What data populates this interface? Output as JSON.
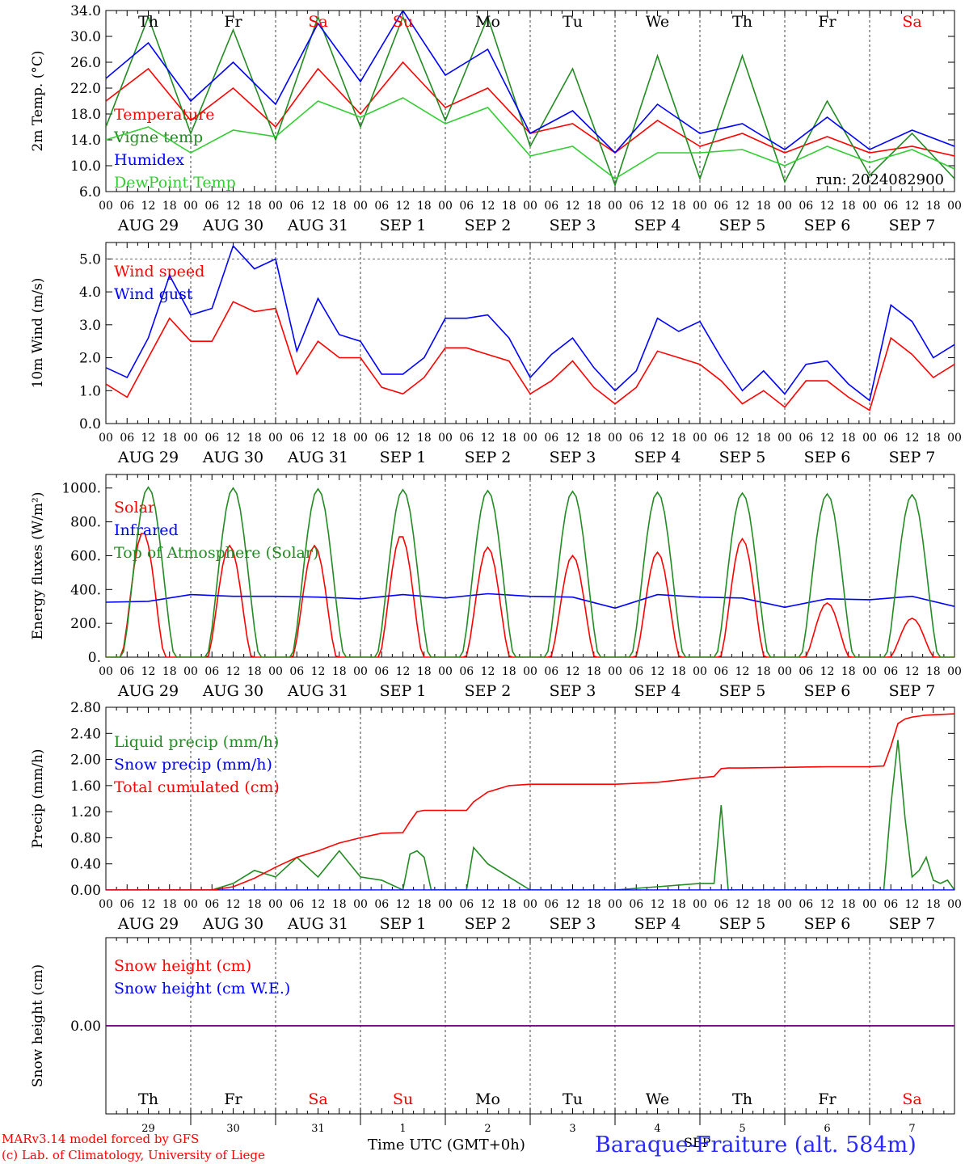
{
  "meteogram": {
    "station": "Baraque-Fraiture (alt. 584m)",
    "run": "run: 2024082900",
    "credit1": "MARv3.14 model forced by GFS",
    "credit2": "(c) Lab. of Climatology, University of Liege",
    "time_axis_title": "Time UTC (GMT+0h)",
    "month_label": "SEP",
    "hour_ticks": [
      "00",
      "06",
      "12",
      "18"
    ],
    "days": [
      {
        "wd": "Th",
        "date": "AUG 29",
        "num": "29",
        "weekend": false
      },
      {
        "wd": "Fr",
        "date": "AUG 30",
        "num": "30",
        "weekend": false
      },
      {
        "wd": "Sa",
        "date": "AUG 31",
        "num": "31",
        "weekend": true
      },
      {
        "wd": "Su",
        "date": "SEP  1",
        "num": "1",
        "weekend": true
      },
      {
        "wd": "Mo",
        "date": "SEP  2",
        "num": "2",
        "weekend": false
      },
      {
        "wd": "Tu",
        "date": "SEP  3",
        "num": "3",
        "weekend": false
      },
      {
        "wd": "We",
        "date": "SEP  4",
        "num": "4",
        "weekend": false
      },
      {
        "wd": "Th",
        "date": "SEP  5",
        "num": "5",
        "weekend": false
      },
      {
        "wd": "Fr",
        "date": "SEP  6",
        "num": "6",
        "weekend": false
      },
      {
        "wd": "Sa",
        "date": "SEP  7",
        "num": "7",
        "weekend": true
      }
    ],
    "colors": {
      "red": "#ff0000",
      "green": "#228b22",
      "blue": "#0000ff",
      "lightgreen": "#32cd32",
      "purple": "#800080",
      "grid": "#666666"
    }
  },
  "chart_data": [
    {
      "type": "line",
      "ylabel": "2m Temp. (°C)",
      "ylim": [
        6,
        34
      ],
      "yticks": [
        "6.0",
        "10.0",
        "14.0",
        "18.0",
        "22.0",
        "26.0",
        "30.0",
        "34.0"
      ],
      "yticks_values": [
        6,
        10,
        14,
        18,
        22,
        26,
        30,
        34
      ],
      "grid": false,
      "series": [
        {
          "name": "Temperature",
          "color": "red",
          "x": [
            0,
            12,
            24,
            36,
            48,
            60,
            72,
            84,
            96,
            108,
            120,
            132,
            144,
            156,
            168,
            180,
            192,
            204,
            216,
            228,
            240
          ],
          "values": [
            20,
            25,
            17,
            22,
            16,
            25,
            18,
            26,
            19,
            22,
            15,
            16.5,
            12,
            17,
            13,
            15,
            12,
            14.5,
            12,
            13,
            11.5
          ]
        },
        {
          "name": "Vigne temp",
          "color": "green",
          "x": [
            0,
            12,
            24,
            36,
            48,
            60,
            72,
            84,
            96,
            108,
            120,
            132,
            144,
            156,
            168,
            180,
            192,
            204,
            216,
            228,
            240
          ],
          "values": [
            16,
            33,
            15,
            31,
            14,
            33,
            16,
            33,
            17,
            33,
            13,
            25,
            7,
            27,
            8,
            27,
            7.5,
            20,
            8.5,
            15,
            8
          ]
        },
        {
          "name": "Humidex",
          "color": "blue",
          "x": [
            0,
            12,
            24,
            36,
            48,
            60,
            72,
            84,
            96,
            108,
            120,
            132,
            144,
            156,
            168,
            180,
            192,
            204,
            216,
            228,
            240
          ],
          "values": [
            23.5,
            29,
            20,
            26,
            19.5,
            32,
            23,
            34,
            24,
            28,
            15,
            18.5,
            12,
            19.5,
            15,
            16.5,
            12.5,
            17.5,
            12.5,
            15.5,
            13
          ]
        },
        {
          "name": "DewPoint Temp",
          "color": "lightgreen",
          "x": [
            0,
            12,
            24,
            36,
            48,
            60,
            72,
            84,
            96,
            108,
            120,
            132,
            144,
            156,
            168,
            180,
            192,
            204,
            216,
            228,
            240
          ],
          "values": [
            14,
            16,
            12,
            15.5,
            14.5,
            20,
            17.5,
            20.5,
            16.5,
            19,
            11.5,
            13,
            8,
            12,
            12,
            12.5,
            10,
            13,
            10.5,
            12.5,
            9.5
          ]
        }
      ],
      "annotations": [
        "run: 2024082900"
      ]
    },
    {
      "type": "line",
      "ylabel": "10m Wind (m/s)",
      "ylim": [
        0,
        5.5
      ],
      "yticks": [
        "0.0",
        "1.0",
        "2.0",
        "3.0",
        "4.0",
        "5.0"
      ],
      "yticks_values": [
        0,
        1,
        2,
        3,
        4,
        5
      ],
      "grid": false,
      "series": [
        {
          "name": "Wind speed",
          "color": "red",
          "x": [
            0,
            6,
            12,
            18,
            24,
            30,
            36,
            42,
            48,
            54,
            60,
            66,
            72,
            78,
            84,
            90,
            96,
            102,
            108,
            114,
            120,
            126,
            132,
            138,
            144,
            150,
            156,
            162,
            168,
            174,
            180,
            186,
            192,
            198,
            204,
            210,
            216,
            222,
            228,
            234,
            240
          ],
          "values": [
            1.2,
            0.8,
            2,
            3.2,
            2.5,
            2.5,
            3.7,
            3.4,
            3.5,
            1.5,
            2.5,
            2,
            2,
            1.1,
            0.9,
            1.4,
            2.3,
            2.3,
            2.1,
            1.9,
            0.9,
            1.3,
            1.9,
            1.1,
            0.6,
            1.1,
            2.2,
            2,
            1.8,
            1.3,
            0.6,
            1,
            0.5,
            1.3,
            1.3,
            0.8,
            0.4,
            2.6,
            2.1,
            1.4,
            1.8
          ]
        },
        {
          "name": "Wind gust",
          "color": "blue",
          "x": [
            0,
            6,
            12,
            18,
            24,
            30,
            36,
            42,
            48,
            54,
            60,
            66,
            72,
            78,
            84,
            90,
            96,
            102,
            108,
            114,
            120,
            126,
            132,
            138,
            144,
            150,
            156,
            162,
            168,
            174,
            180,
            186,
            192,
            198,
            204,
            210,
            216,
            222,
            228,
            234,
            240
          ],
          "values": [
            1.7,
            1.4,
            2.6,
            4.5,
            3.3,
            3.5,
            5.4,
            4.7,
            5,
            2.2,
            3.8,
            2.7,
            2.5,
            1.5,
            1.5,
            2,
            3.2,
            3.2,
            3.3,
            2.6,
            1.4,
            2.1,
            2.6,
            1.7,
            1,
            1.6,
            3.2,
            2.8,
            3.1,
            2,
            1,
            1.6,
            0.9,
            1.8,
            1.9,
            1.2,
            0.7,
            3.6,
            3.1,
            2,
            2.4
          ]
        }
      ]
    },
    {
      "type": "line",
      "ylabel": "Energy fluxes (W/m²)",
      "ylim": [
        0,
        1080
      ],
      "yticks": [
        "0.",
        "200.",
        "400.",
        "600.",
        "800.",
        "1000."
      ],
      "yticks_values": [
        0,
        200,
        400,
        600,
        800,
        1000
      ],
      "grid": false,
      "series": [
        {
          "name": "Solar",
          "color": "red",
          "peaks": [
            [
              10.5,
              740
            ],
            [
              35,
              660
            ],
            [
              59,
              660
            ],
            [
              83.5,
              720
            ],
            [
              108,
              650
            ],
            [
              132,
              600
            ],
            [
              156,
              620
            ],
            [
              180,
              700
            ],
            [
              204,
              320
            ],
            [
              228,
              230
            ]
          ]
        },
        {
          "name": "Infrared",
          "color": "blue",
          "x": [
            0,
            12,
            24,
            36,
            48,
            60,
            72,
            84,
            96,
            108,
            120,
            132,
            144,
            156,
            168,
            180,
            192,
            204,
            216,
            228,
            240
          ],
          "values": [
            325,
            330,
            370,
            360,
            360,
            355,
            345,
            370,
            350,
            375,
            360,
            355,
            290,
            370,
            355,
            350,
            295,
            345,
            340,
            360,
            300
          ]
        },
        {
          "name": "Top of Atmosphere (Solar)",
          "color": "green",
          "peaks": [
            [
              12,
              1005
            ],
            [
              36,
              1000
            ],
            [
              60,
              995
            ],
            [
              84,
              990
            ],
            [
              108,
              985
            ],
            [
              132,
              980
            ],
            [
              156,
              975
            ],
            [
              180,
              970
            ],
            [
              204,
              965
            ],
            [
              228,
              960
            ]
          ]
        }
      ]
    },
    {
      "type": "line",
      "ylabel": "Precip (mm/h)",
      "ylim": [
        0,
        2.8
      ],
      "yticks": [
        "0.00",
        "0.40",
        "0.80",
        "1.20",
        "1.60",
        "2.00",
        "2.40",
        "2.80"
      ],
      "yticks_values": [
        0,
        0.4,
        0.8,
        1.2,
        1.6,
        2,
        2.4,
        2.8
      ],
      "grid": false,
      "series": [
        {
          "name": "Liquid precip (mm/h)",
          "color": "green",
          "x": [
            0,
            30,
            36,
            42,
            48,
            54,
            60,
            66,
            72,
            78,
            84,
            86,
            88,
            90,
            92,
            96,
            102,
            104,
            108,
            114,
            120,
            144,
            156,
            168,
            172,
            174,
            176,
            180,
            192,
            204,
            216,
            220,
            222,
            224,
            226,
            228,
            230,
            232,
            234,
            236,
            238,
            240
          ],
          "values": [
            0,
            0,
            0.1,
            0.3,
            0.2,
            0.5,
            0.2,
            0.6,
            0.2,
            0.15,
            0,
            0.55,
            0.6,
            0.5,
            0,
            0,
            0,
            0.65,
            0.4,
            0.2,
            0,
            0,
            0.05,
            0.1,
            0.1,
            1.3,
            0,
            0,
            0,
            0,
            0,
            0,
            1.3,
            2.3,
            1.1,
            0.2,
            0.3,
            0.5,
            0.15,
            0.1,
            0.15,
            0
          ]
        },
        {
          "name": "Snow precip (mm/h)",
          "color": "blue",
          "x": [
            0,
            240
          ],
          "values": [
            0,
            0
          ]
        },
        {
          "name": "Total cumulated (cm)",
          "color": "red",
          "x": [
            0,
            30,
            36,
            42,
            48,
            54,
            60,
            66,
            72,
            78,
            84,
            86,
            88,
            90,
            92,
            96,
            102,
            104,
            108,
            114,
            120,
            144,
            156,
            168,
            172,
            174,
            176,
            180,
            192,
            204,
            216,
            220,
            222,
            224,
            226,
            228,
            232,
            240
          ],
          "values": [
            0,
            0,
            0.05,
            0.18,
            0.35,
            0.5,
            0.6,
            0.72,
            0.8,
            0.87,
            0.88,
            1.05,
            1.2,
            1.22,
            1.22,
            1.22,
            1.22,
            1.35,
            1.5,
            1.6,
            1.62,
            1.62,
            1.65,
            1.72,
            1.74,
            1.86,
            1.87,
            1.87,
            1.88,
            1.89,
            1.89,
            1.9,
            2.2,
            2.55,
            2.62,
            2.65,
            2.68,
            2.7
          ]
        }
      ]
    },
    {
      "type": "line",
      "ylabel": "Snow height (cm)",
      "ylim": [
        -1,
        1
      ],
      "yticks": [
        "0.00"
      ],
      "yticks_values": [
        0
      ],
      "grid": false,
      "series": [
        {
          "name": "Snow height (cm)",
          "color": "red",
          "x": [
            0,
            240
          ],
          "values": [
            0,
            0
          ]
        },
        {
          "name": "Snow height (cm W.E.)",
          "color": "blue",
          "x": [
            0,
            240
          ],
          "values": [
            0,
            0
          ]
        }
      ]
    }
  ]
}
